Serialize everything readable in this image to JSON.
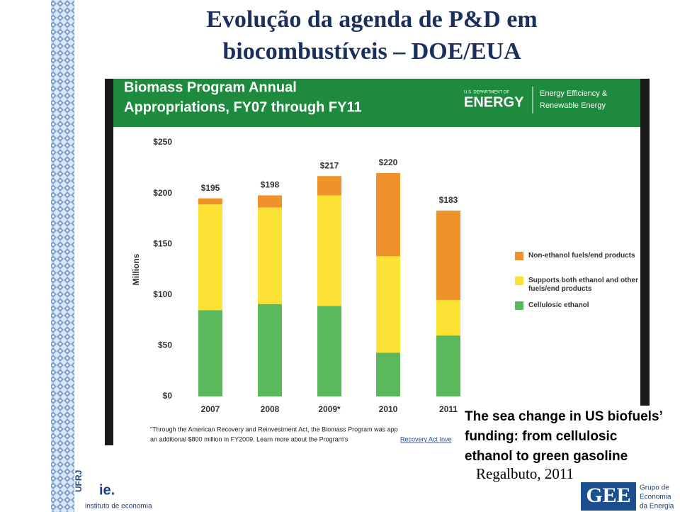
{
  "slide": {
    "title_line1": "Evolução da agenda de P&D em",
    "title_line2": "biocombustíveis – DOE/EUA",
    "overlay_lines": [
      "The sea change in US biofuels’",
      "funding: from cellulosic",
      "ethanol to green gasoline"
    ],
    "citation": "Regalbuto, 2011",
    "logo_left": {
      "mark": "ie.",
      "univ": "UFRJ",
      "name": "instituto de economia"
    },
    "logo_right": {
      "mark": "GEE",
      "name_lines": [
        "Grupo de",
        "Economia",
        "da Energia"
      ]
    }
  },
  "chart_data": {
    "type": "stacked-bar",
    "title_lines": [
      "Biomass Program Annual",
      "Appropriations, FY07 through FY11"
    ],
    "header_right": {
      "dept": "U.S. DEPARTMENT OF",
      "agency": "ENERGY",
      "office_lines": [
        "Energy Efficiency &",
        "Renewable Energy"
      ]
    },
    "ylabel": "Millions",
    "categories": [
      "2007",
      "2008",
      "2009*",
      "2010",
      "2011"
    ],
    "series": [
      {
        "name": "Non-ethanol fuels/end products",
        "color": "#f0922a",
        "values": [
          6,
          12,
          19,
          82,
          88
        ]
      },
      {
        "name": "Supports both ethanol and other fuels/end products",
        "color": "#fbe234",
        "values": [
          104,
          95,
          109,
          95,
          35
        ]
      },
      {
        "name": "Cellulosic ethanol",
        "color": "#5cb85c",
        "values": [
          85,
          91,
          89,
          43,
          60
        ]
      }
    ],
    "totals": [
      195,
      198,
      217,
      220,
      183
    ],
    "total_labels": [
      "$195",
      "$198",
      "$217",
      "$220",
      "$183"
    ],
    "ylim": [
      0,
      250
    ],
    "yticks": [
      {
        "value": 0,
        "label": "$0"
      },
      {
        "value": 50,
        "label": "$50"
      },
      {
        "value": 100,
        "label": "$100"
      },
      {
        "value": 150,
        "label": "$150"
      },
      {
        "value": 200,
        "label": "$200"
      },
      {
        "value": 250,
        "label": "$250"
      }
    ],
    "footnote_lines": [
      "“Through the American Recovery and Reinvestment Act, the Biomass Program was app",
      "an additional $800 million in FY2009. Learn more about the Program's"
    ],
    "footnote_link": "Recovery Act Inve"
  }
}
